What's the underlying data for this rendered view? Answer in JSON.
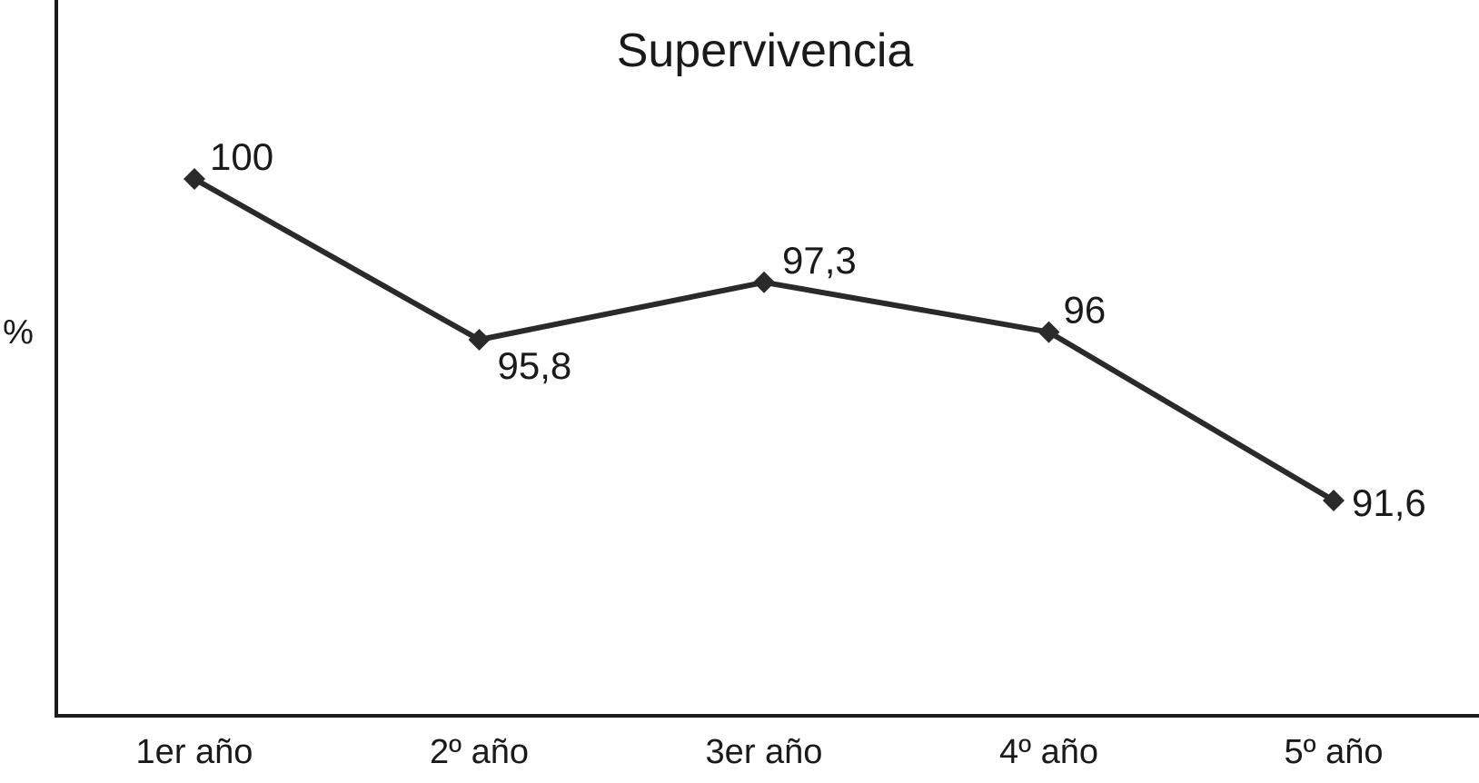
{
  "chart_data": {
    "type": "line",
    "title": "Supervivencia",
    "xlabel": "",
    "ylabel": "%",
    "categories": [
      "1er año",
      "2º año",
      "3er año",
      "4º año",
      "5º año"
    ],
    "series": [
      {
        "values": [
          100,
          95.8,
          97.3,
          96,
          91.6
        ],
        "data_labels": [
          "100",
          "95,8",
          "97,3",
          "96",
          "91,6"
        ],
        "color": "#2a2a2a",
        "marker": "diamond"
      }
    ],
    "ylim": [
      85,
      103.5
    ],
    "grid": false,
    "legend": "none"
  }
}
